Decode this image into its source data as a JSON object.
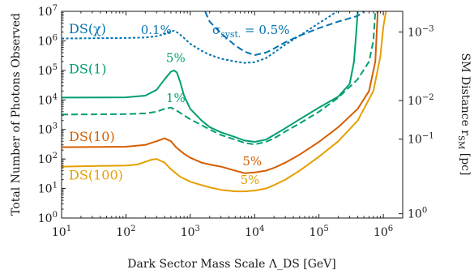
{
  "chart_data": {
    "type": "line",
    "xlabel": "Dark Sector Mass Scale Λ_DS [GeV]",
    "ylabel": "Total Number of Photons Observed",
    "y2label": "SM Distance r_SM [pc]",
    "xscale": "log",
    "yscale": "log",
    "xlim": [
      10,
      2000000
    ],
    "ylim": [
      1,
      10000000
    ],
    "grid": false,
    "x_ticks": [
      {
        "v": 10,
        "label": "10^1"
      },
      {
        "v": 100,
        "label": "10^2"
      },
      {
        "v": 1000,
        "label": "10^3"
      },
      {
        "v": 10000,
        "label": "10^4"
      },
      {
        "v": 100000,
        "label": "10^5"
      },
      {
        "v": 1000000,
        "label": "10^6"
      }
    ],
    "y_ticks": [
      {
        "v": 1,
        "label": "10^0"
      },
      {
        "v": 10,
        "label": "10^1"
      },
      {
        "v": 100,
        "label": "10^2"
      },
      {
        "v": 1000,
        "label": "10^3"
      },
      {
        "v": 10000,
        "label": "10^4"
      },
      {
        "v": 100000,
        "label": "10^5"
      },
      {
        "v": 1000000,
        "label": "10^6"
      },
      {
        "v": 10000000,
        "label": "10^7"
      }
    ],
    "y2_ticks": [
      {
        "v": 1.4,
        "label": "10^0"
      },
      {
        "v": 470,
        "label": "10^-1"
      },
      {
        "v": 9500,
        "label": "10^-2"
      },
      {
        "v": 2000000,
        "label": "10^-3"
      }
    ],
    "series": [
      {
        "name": "DS(χ)",
        "color": "#0072B2",
        "dash": "dotted",
        "points": [
          [
            10,
            1200000
          ],
          [
            100,
            1250000
          ],
          [
            200,
            1300000
          ],
          [
            300,
            1450000
          ],
          [
            400,
            1700000
          ],
          [
            500,
            2100000
          ],
          [
            560,
            2200000
          ],
          [
            650,
            1850000
          ],
          [
            800,
            1250000
          ],
          [
            1000,
            800000
          ],
          [
            1500,
            460000
          ],
          [
            2000,
            340000
          ],
          [
            3000,
            250000
          ],
          [
            5000,
            200000
          ],
          [
            7000,
            180000
          ],
          [
            10000,
            190000
          ],
          [
            15000,
            260000
          ],
          [
            20000,
            400000
          ],
          [
            30000,
            750000
          ],
          [
            50000,
            1500000
          ],
          [
            100000,
            4000000
          ],
          [
            150000,
            7000000
          ],
          [
            190000,
            10000000
          ]
        ]
      },
      {
        "name": "",
        "color": "#0072B2",
        "dash": "dashed",
        "points": [
          [
            1700,
            10000000
          ],
          [
            2000,
            4500000
          ],
          [
            3000,
            1800000
          ],
          [
            5000,
            700000
          ],
          [
            7000,
            430000
          ],
          [
            10000,
            330000
          ],
          [
            15000,
            400000
          ],
          [
            20000,
            550000
          ],
          [
            30000,
            900000
          ],
          [
            50000,
            1500000
          ],
          [
            100000,
            2700000
          ],
          [
            200000,
            4500000
          ],
          [
            400000,
            7000000
          ],
          [
            500000,
            10000000
          ]
        ]
      },
      {
        "name": "DS(1)",
        "color": "#009E73",
        "dash": "solid",
        "points": [
          [
            10,
            12000
          ],
          [
            100,
            12200
          ],
          [
            200,
            14000
          ],
          [
            300,
            22000
          ],
          [
            400,
            50000
          ],
          [
            500,
            90000
          ],
          [
            560,
            100000
          ],
          [
            620,
            85000
          ],
          [
            700,
            40000
          ],
          [
            800,
            14000
          ],
          [
            1000,
            5000
          ],
          [
            1500,
            2000
          ],
          [
            2000,
            1200
          ],
          [
            3000,
            800
          ],
          [
            5000,
            550
          ],
          [
            7000,
            420
          ],
          [
            10000,
            380
          ],
          [
            15000,
            450
          ],
          [
            20000,
            650
          ],
          [
            30000,
            1100
          ],
          [
            50000,
            2200
          ],
          [
            100000,
            5500
          ],
          [
            200000,
            13000
          ],
          [
            300000,
            35000
          ],
          [
            350000,
            200000
          ],
          [
            380000,
            2000000
          ],
          [
            400000,
            10000000
          ]
        ]
      },
      {
        "name": "",
        "color": "#009E73",
        "dash": "dashed",
        "points": [
          [
            10,
            3200
          ],
          [
            100,
            3300
          ],
          [
            200,
            3500
          ],
          [
            300,
            4000
          ],
          [
            400,
            5000
          ],
          [
            500,
            5500
          ],
          [
            600,
            4500
          ],
          [
            800,
            3000
          ],
          [
            1000,
            2200
          ],
          [
            1500,
            1400
          ],
          [
            2000,
            1000
          ],
          [
            3000,
            650
          ],
          [
            5000,
            450
          ],
          [
            7000,
            350
          ],
          [
            10000,
            310
          ],
          [
            15000,
            380
          ],
          [
            20000,
            500
          ],
          [
            30000,
            850
          ],
          [
            50000,
            1600
          ],
          [
            100000,
            4000
          ],
          [
            200000,
            12000
          ],
          [
            400000,
            50000
          ],
          [
            600000,
            200000
          ],
          [
            700000,
            1000000
          ],
          [
            750000,
            10000000
          ]
        ]
      },
      {
        "name": "DS(10)",
        "color": "#D55E00",
        "dash": "solid",
        "points": [
          [
            10,
            250
          ],
          [
            100,
            260
          ],
          [
            200,
            300
          ],
          [
            300,
            400
          ],
          [
            400,
            500
          ],
          [
            500,
            400
          ],
          [
            600,
            250
          ],
          [
            800,
            150
          ],
          [
            1000,
            110
          ],
          [
            1500,
            75
          ],
          [
            2000,
            65
          ],
          [
            3000,
            55
          ],
          [
            5000,
            40
          ],
          [
            7000,
            33
          ],
          [
            10000,
            35
          ],
          [
            15000,
            40
          ],
          [
            20000,
            50
          ],
          [
            30000,
            75
          ],
          [
            50000,
            140
          ],
          [
            100000,
            380
          ],
          [
            200000,
            1200
          ],
          [
            400000,
            5000
          ],
          [
            600000,
            20000
          ],
          [
            750000,
            200000
          ],
          [
            820000,
            10000000
          ]
        ]
      },
      {
        "name": "DS(100)",
        "color": "#E69F00",
        "dash": "solid",
        "points": [
          [
            10,
            55
          ],
          [
            100,
            60
          ],
          [
            150,
            65
          ],
          [
            200,
            80
          ],
          [
            250,
            95
          ],
          [
            300,
            100
          ],
          [
            400,
            75
          ],
          [
            500,
            45
          ],
          [
            700,
            25
          ],
          [
            1000,
            17
          ],
          [
            1500,
            13
          ],
          [
            2000,
            11
          ],
          [
            3000,
            9
          ],
          [
            5000,
            8
          ],
          [
            7000,
            8
          ],
          [
            10000,
            8.5
          ],
          [
            15000,
            10
          ],
          [
            20000,
            13
          ],
          [
            30000,
            20
          ],
          [
            50000,
            40
          ],
          [
            100000,
            120
          ],
          [
            200000,
            400
          ],
          [
            400000,
            2000
          ],
          [
            700000,
            20000
          ],
          [
            900000,
            300000
          ],
          [
            1000000,
            3000000
          ],
          [
            1100000,
            10000000
          ]
        ]
      }
    ],
    "annotations": [
      {
        "text": "DS(χ)",
        "x": 13,
        "y": 1800000,
        "color": "#0072B2",
        "size": 16
      },
      {
        "text": "0.1%",
        "x": 170,
        "y": 1700000,
        "color": "#0072B2",
        "size": 15
      },
      {
        "text": "σ_syst. = 0.5%",
        "x": 2200,
        "y": 1700000,
        "color": "#0072B2",
        "size": 15
      },
      {
        "text": "5%",
        "x": 420,
        "y": 190000,
        "color": "#009E73",
        "size": 15
      },
      {
        "text": "DS(1)",
        "x": 13,
        "y": 80000,
        "color": "#009E73",
        "size": 16
      },
      {
        "text": "1%",
        "x": 420,
        "y": 8500,
        "color": "#009E73",
        "size": 15
      },
      {
        "text": "DS(10)",
        "x": 13,
        "y": 400,
        "color": "#D55E00",
        "size": 16
      },
      {
        "text": "5%",
        "x": 6500,
        "y": 60,
        "color": "#D55E00",
        "size": 15
      },
      {
        "text": "DS(100)",
        "x": 13,
        "y": 20,
        "color": "#E69F00",
        "size": 16
      },
      {
        "text": "5%",
        "x": 6000,
        "y": 14,
        "color": "#E69F00",
        "size": 15
      }
    ]
  }
}
